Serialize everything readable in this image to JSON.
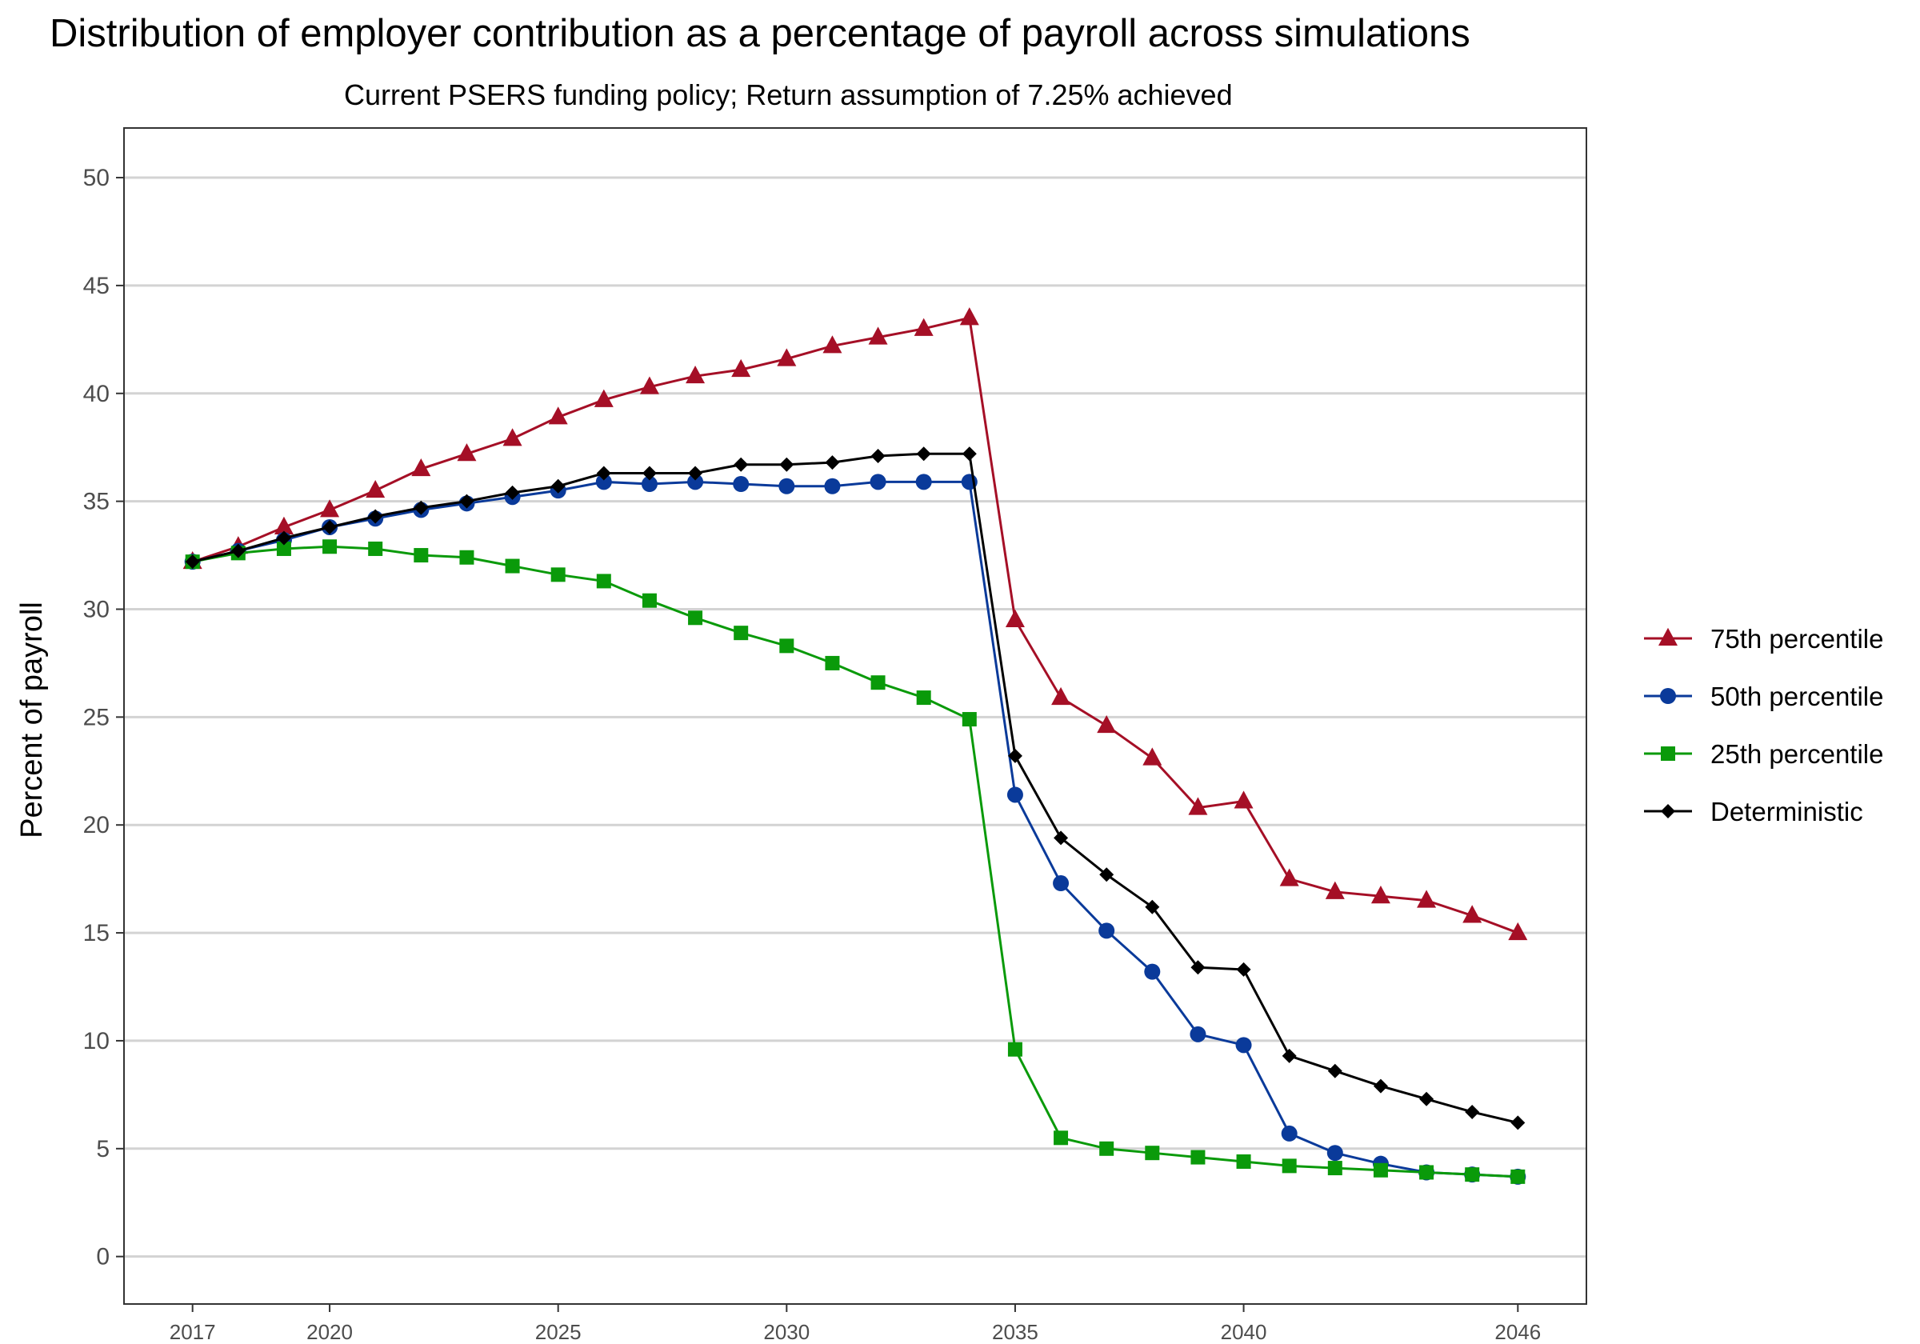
{
  "chart_data": {
    "type": "line",
    "title": "Distribution of employer contribution as a percentage of payroll across simulations",
    "subtitle": "Current PSERS funding policy; Return assumption of 7.25% achieved",
    "xlabel": "",
    "ylabel": "Percent of payroll",
    "xlim": [
      2015.5,
      2047.5
    ],
    "ylim": [
      -2.2,
      52.3
    ],
    "x_ticks": [
      2017,
      2020,
      2025,
      2030,
      2035,
      2040,
      2046
    ],
    "y_ticks": [
      0,
      5,
      10,
      15,
      20,
      25,
      30,
      35,
      40,
      45,
      50
    ],
    "grid": "horizontal",
    "legend_position": "right",
    "x": [
      2017,
      2018,
      2019,
      2020,
      2021,
      2022,
      2023,
      2024,
      2025,
      2026,
      2027,
      2028,
      2029,
      2030,
      2031,
      2032,
      2033,
      2034,
      2035,
      2036,
      2037,
      2038,
      2039,
      2040,
      2041,
      2042,
      2043,
      2044,
      2045,
      2046
    ],
    "series": [
      {
        "name": "75th percentile",
        "color": "#a50f26",
        "marker": "triangle",
        "values": [
          32.2,
          32.9,
          33.8,
          34.6,
          35.5,
          36.5,
          37.2,
          37.9,
          38.9,
          39.7,
          40.3,
          40.8,
          41.1,
          41.6,
          42.2,
          42.6,
          43.0,
          43.5,
          29.5,
          25.9,
          24.6,
          23.1,
          20.8,
          21.1,
          17.5,
          16.9,
          16.7,
          16.5,
          15.8,
          15.0
        ]
      },
      {
        "name": "50th percentile",
        "color": "#0a3a9a",
        "marker": "circle",
        "values": [
          32.2,
          32.7,
          33.2,
          33.8,
          34.2,
          34.6,
          34.9,
          35.2,
          35.5,
          35.9,
          35.8,
          35.9,
          35.8,
          35.7,
          35.7,
          35.9,
          35.9,
          35.9,
          21.4,
          17.3,
          15.1,
          13.2,
          10.3,
          9.8,
          5.7,
          4.8,
          4.3,
          3.9,
          3.8,
          3.7
        ]
      },
      {
        "name": "25th percentile",
        "color": "#0a9a0a",
        "marker": "square",
        "values": [
          32.2,
          32.6,
          32.8,
          32.9,
          32.8,
          32.5,
          32.4,
          32.0,
          31.6,
          31.3,
          30.4,
          29.6,
          28.9,
          28.3,
          27.5,
          26.6,
          25.9,
          24.9,
          9.6,
          5.5,
          5.0,
          4.8,
          4.6,
          4.4,
          4.2,
          4.1,
          4.0,
          3.9,
          3.8,
          3.7
        ]
      },
      {
        "name": "Deterministic",
        "color": "#000000",
        "marker": "diamond",
        "values": [
          32.2,
          32.7,
          33.3,
          33.8,
          34.3,
          34.7,
          35.0,
          35.4,
          35.7,
          36.3,
          36.3,
          36.3,
          36.7,
          36.7,
          36.8,
          37.1,
          37.2,
          37.2,
          23.2,
          19.4,
          17.7,
          16.2,
          13.4,
          13.3,
          9.3,
          8.6,
          7.9,
          7.3,
          6.7,
          6.2
        ]
      }
    ]
  }
}
